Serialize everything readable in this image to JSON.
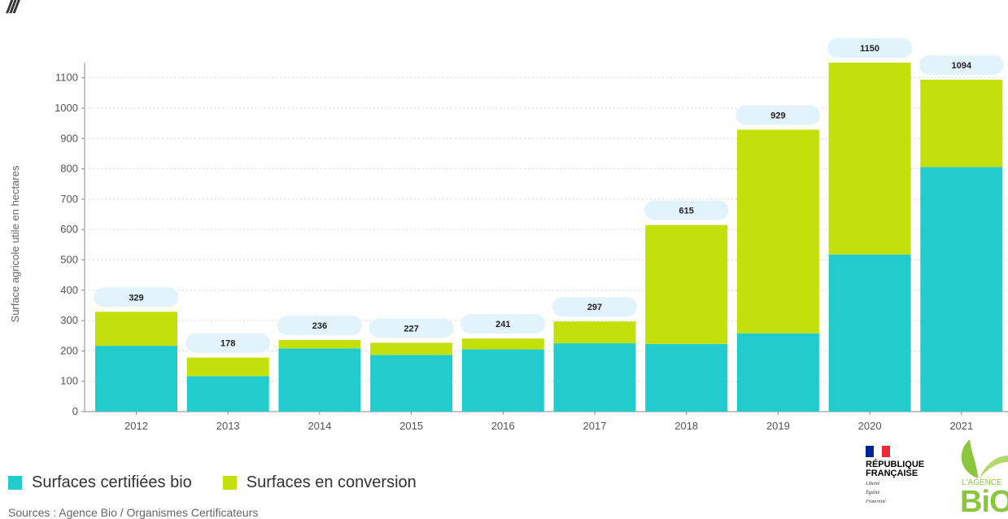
{
  "chart_data": {
    "type": "bar",
    "stacked": true,
    "categories": [
      "2012",
      "2013",
      "2014",
      "2015",
      "2016",
      "2017",
      "2018",
      "2019",
      "2020",
      "2021"
    ],
    "series": [
      {
        "name": "Surfaces certifiées bio",
        "values": [
          217,
          117,
          208,
          187,
          205,
          225,
          223,
          258,
          518,
          806
        ],
        "color": "#22cccc"
      },
      {
        "name": "Surfaces en conversion",
        "values": [
          112,
          61,
          28,
          40,
          36,
          72,
          392,
          671,
          632,
          288
        ],
        "color": "#c4e00c"
      }
    ],
    "totals": [
      "329",
      "178",
      "236",
      "227",
      "241",
      "297",
      "615",
      "929",
      "1150",
      "1094"
    ],
    "ylabel": "Surface agricole utile en hectares",
    "xlabel": "",
    "title": "",
    "ylim": [
      0,
      1150
    ],
    "yticks": [
      "0",
      "100",
      "200",
      "300",
      "400",
      "500",
      "600",
      "700",
      "800",
      "900",
      "1000",
      "1100"
    ],
    "grid": true,
    "legend_position": "bottom-left"
  },
  "legend": [
    {
      "label": "Surfaces certifiées bio",
      "color": "#22cccc"
    },
    {
      "label": "Surfaces en conversion",
      "color": "#c4e00c"
    }
  ],
  "source": "Sources : Agence Bio / Organismes Certificateurs",
  "header_glyph": "///",
  "logos": {
    "rf_title_1": "RÉPUBLIQUE",
    "rf_title_2": "FRANÇAISE",
    "rf_motto_1": "Liberté",
    "rf_motto_2": "Égalité",
    "rf_motto_3": "Fraternité",
    "agence_text": "L'AGENCE",
    "agence_bio": "BiO"
  }
}
